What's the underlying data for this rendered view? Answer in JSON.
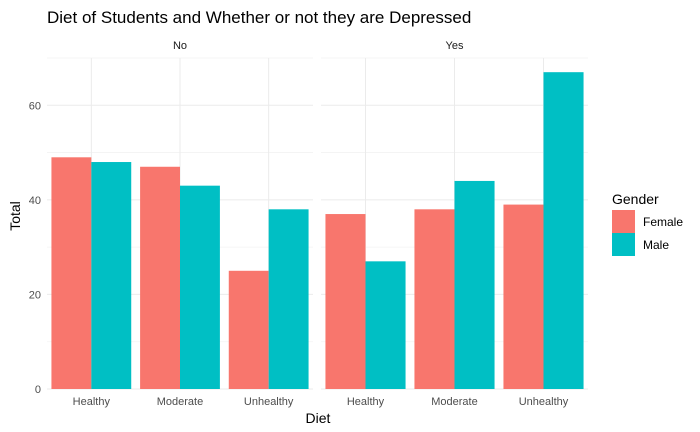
{
  "chart_data": {
    "type": "bar",
    "title": "Diet of Students and Whether or not they are Depressed",
    "xlabel": "Diet",
    "ylabel": "Total",
    "ylim": [
      0,
      70
    ],
    "yticks": [
      0,
      20,
      40,
      60
    ],
    "grid": true,
    "legend": {
      "title": "Gender",
      "position": "right"
    },
    "categories": [
      "Healthy",
      "Moderate",
      "Unhealthy"
    ],
    "colors": {
      "Female": "#F8766D",
      "Male": "#00BFC4"
    },
    "facets": [
      {
        "label": "No",
        "series": [
          {
            "name": "Female",
            "values": [
              49,
              47,
              25
            ]
          },
          {
            "name": "Male",
            "values": [
              48,
              43,
              38
            ]
          }
        ]
      },
      {
        "label": "Yes",
        "series": [
          {
            "name": "Female",
            "values": [
              37,
              38,
              39
            ]
          },
          {
            "name": "Male",
            "values": [
              27,
              44,
              67
            ]
          }
        ]
      }
    ]
  }
}
